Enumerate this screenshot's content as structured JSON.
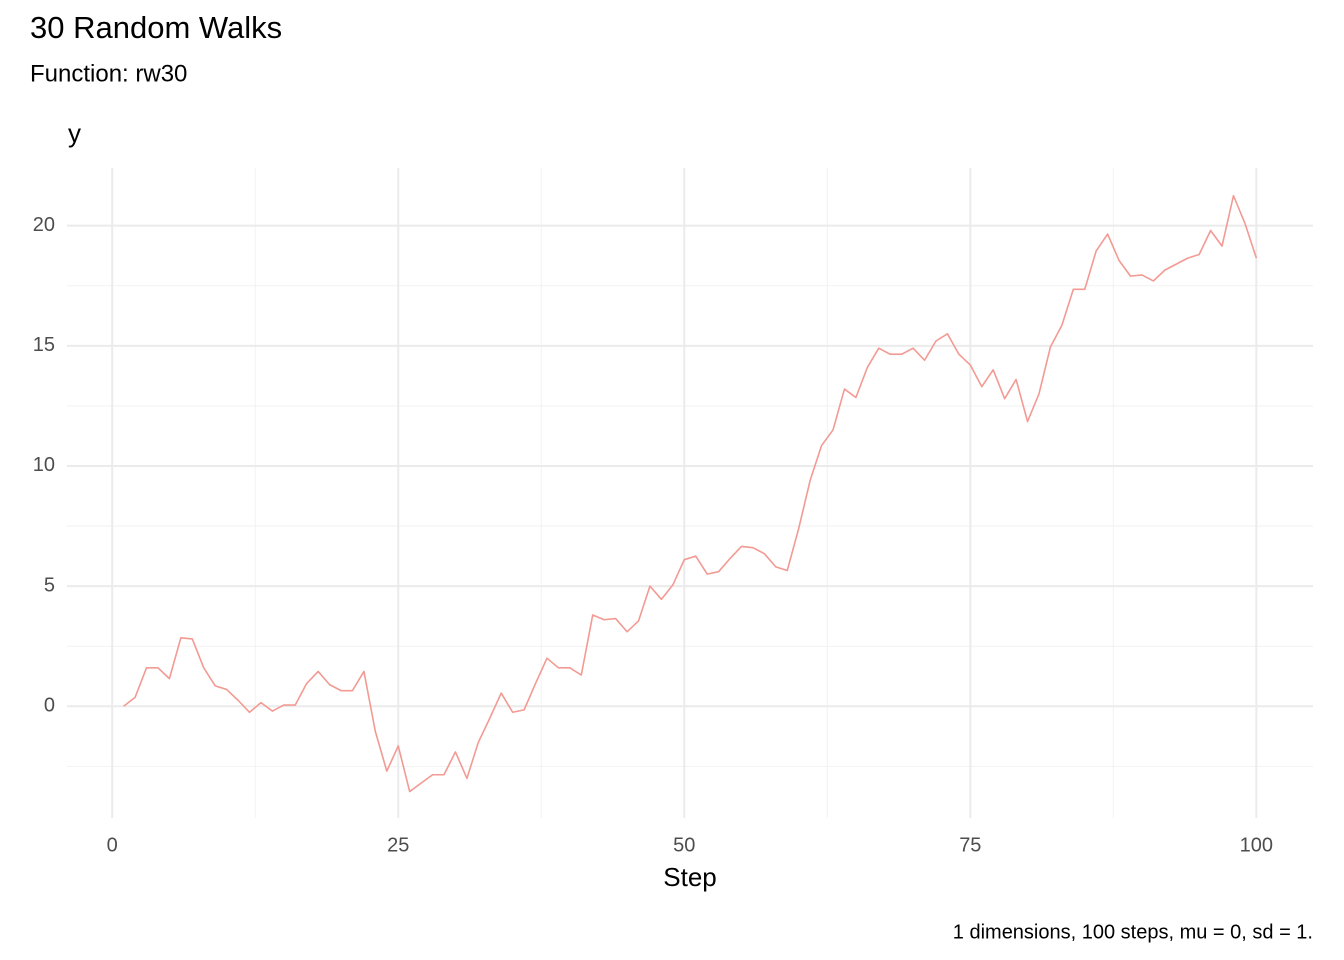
{
  "chart_data": {
    "type": "line",
    "title": "30 Random Walks",
    "subtitle": "Function: rw30",
    "y_label": "y",
    "x_label": "Step",
    "caption": "1 dimensions, 100 steps, mu = 0, sd = 1.",
    "x": [
      1,
      2,
      3,
      4,
      5,
      6,
      7,
      8,
      9,
      10,
      11,
      12,
      13,
      14,
      15,
      16,
      17,
      18,
      19,
      20,
      21,
      22,
      23,
      24,
      25,
      26,
      27,
      28,
      29,
      30,
      31,
      32,
      33,
      34,
      35,
      36,
      37,
      38,
      39,
      40,
      41,
      42,
      43,
      44,
      45,
      46,
      47,
      48,
      49,
      50,
      51,
      52,
      53,
      54,
      55,
      56,
      57,
      58,
      59,
      60,
      61,
      62,
      63,
      64,
      65,
      66,
      67,
      68,
      69,
      70,
      71,
      72,
      73,
      74,
      75,
      76,
      77,
      78,
      79,
      80,
      81,
      82,
      83,
      84,
      85,
      86,
      87,
      88,
      89,
      90,
      91,
      92,
      93,
      94,
      95,
      96,
      97,
      98,
      99,
      100
    ],
    "series": [
      {
        "color": "#f29a93",
        "values": [
          0,
          0.37,
          1.6,
          1.6,
          1.15,
          2.85,
          2.8,
          1.6,
          0.85,
          0.7,
          0.25,
          -0.25,
          0.15,
          -0.2,
          0.05,
          0.05,
          0.95,
          1.45,
          0.9,
          0.65,
          0.65,
          1.45,
          -1.05,
          -2.7,
          -1.65,
          -3.55,
          -3.2,
          -2.85,
          -2.85,
          -1.9,
          -3.0,
          -1.5,
          -0.5,
          0.55,
          -0.25,
          -0.15,
          0.95,
          2.0,
          1.6,
          1.6,
          1.3,
          3.8,
          3.6,
          3.65,
          3.1,
          3.55,
          5.0,
          4.45,
          5.05,
          6.1,
          6.25,
          5.5,
          5.6,
          6.15,
          6.65,
          6.6,
          6.35,
          5.8,
          5.65,
          7.4,
          9.4,
          10.85,
          11.5,
          13.2,
          12.85,
          14.1,
          14.9,
          14.65,
          14.65,
          14.9,
          14.4,
          15.2,
          15.5,
          14.65,
          14.2,
          13.3,
          14.0,
          12.8,
          13.6,
          11.85,
          13.0,
          14.95,
          15.85,
          17.35,
          17.35,
          18.95,
          19.65,
          18.55,
          17.9,
          17.95,
          17.7,
          18.15,
          18.4,
          18.65,
          18.8,
          19.8,
          19.15,
          21.25,
          20.1,
          18.65
        ]
      }
    ],
    "xlim": [
      -3.95,
      104.95
    ],
    "ylim": [
      -4.65,
      22.4
    ],
    "xticks": [
      0,
      25,
      50,
      75,
      100
    ],
    "yticks": [
      0,
      5,
      10,
      15,
      20
    ],
    "grid": true
  }
}
